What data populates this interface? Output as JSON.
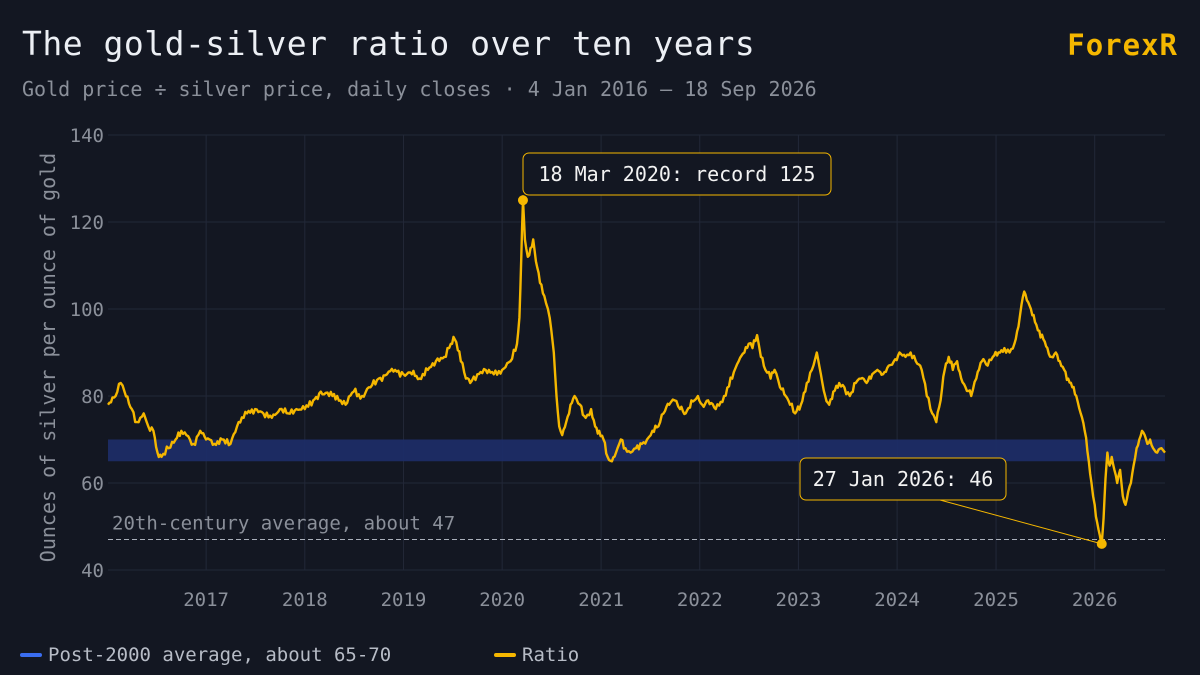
{
  "header": {
    "title": "The gold-silver ratio over ten years",
    "subtitle": "Gold price ÷ silver price, daily closes · 4 Jan 2016 – 18 Sep 2026",
    "brand": "ForexR"
  },
  "colors": {
    "background": "#131722",
    "ratio_line": "#f5b700",
    "band": "#1c2c66",
    "band_legend": "#3a6df0",
    "grid": "#222838",
    "text_muted": "#8b909a"
  },
  "chart_data": {
    "type": "line",
    "title": "The gold-silver ratio over ten years",
    "ylabel": "Ounces of silver per ounce of gold",
    "xlabel": "",
    "ylim": [
      40,
      140
    ],
    "y_ticks": [
      40,
      60,
      80,
      100,
      120,
      140
    ],
    "x_range": [
      "2016-01-04",
      "2026-09-18"
    ],
    "x_ticks": [
      {
        "label": "2017",
        "date": "2017-01-01"
      },
      {
        "label": "2018",
        "date": "2018-01-01"
      },
      {
        "label": "2019",
        "date": "2019-01-01"
      },
      {
        "label": "2020",
        "date": "2020-01-01"
      },
      {
        "label": "2021",
        "date": "2021-01-01"
      },
      {
        "label": "2022",
        "date": "2022-01-01"
      },
      {
        "label": "2023",
        "date": "2023-01-01"
      },
      {
        "label": "2024",
        "date": "2024-01-01"
      },
      {
        "label": "2025",
        "date": "2025-01-01"
      },
      {
        "label": "2026",
        "date": "2026-01-01"
      }
    ],
    "grid": true,
    "band": {
      "label": "Post-2000 average, about 65-70",
      "from": 65,
      "to": 70
    },
    "reference_line": {
      "label": "20th-century average, about 47",
      "value": 47
    },
    "annotations": [
      {
        "label": "18 Mar 2020: record 125",
        "date": "2020-03-18",
        "value": 125
      },
      {
        "label": "27 Jan 2026: 46",
        "date": "2026-01-27",
        "value": 46
      }
    ],
    "legend_position": "bottom-left",
    "series": [
      {
        "name": "Ratio",
        "points": [
          [
            "2016-01-04",
            78
          ],
          [
            "2016-02-01",
            80
          ],
          [
            "2016-02-20",
            83
          ],
          [
            "2016-03-05",
            81
          ],
          [
            "2016-04-01",
            77
          ],
          [
            "2016-04-20",
            74
          ],
          [
            "2016-05-15",
            76
          ],
          [
            "2016-06-01",
            73
          ],
          [
            "2016-06-20",
            72
          ],
          [
            "2016-07-05",
            67
          ],
          [
            "2016-07-20",
            66
          ],
          [
            "2016-08-15",
            68
          ],
          [
            "2016-09-10",
            70
          ],
          [
            "2016-10-01",
            72
          ],
          [
            "2016-10-20",
            71
          ],
          [
            "2016-11-15",
            69
          ],
          [
            "2016-12-10",
            72
          ],
          [
            "2017-01-01",
            70
          ],
          [
            "2017-02-01",
            69
          ],
          [
            "2017-03-01",
            70
          ],
          [
            "2017-04-01",
            69
          ],
          [
            "2017-05-01",
            74
          ],
          [
            "2017-06-01",
            76
          ],
          [
            "2017-07-01",
            77
          ],
          [
            "2017-08-01",
            76
          ],
          [
            "2017-09-01",
            75
          ],
          [
            "2017-10-01",
            77
          ],
          [
            "2017-11-01",
            76
          ],
          [
            "2017-12-01",
            77
          ],
          [
            "2018-01-01",
            77
          ],
          [
            "2018-02-01",
            79
          ],
          [
            "2018-03-01",
            81
          ],
          [
            "2018-04-01",
            80
          ],
          [
            "2018-05-01",
            80
          ],
          [
            "2018-06-01",
            78
          ],
          [
            "2018-07-01",
            81
          ],
          [
            "2018-08-01",
            80
          ],
          [
            "2018-09-01",
            82
          ],
          [
            "2018-10-01",
            84
          ],
          [
            "2018-11-01",
            85
          ],
          [
            "2018-12-01",
            86
          ],
          [
            "2019-01-01",
            85
          ],
          [
            "2019-02-01",
            85
          ],
          [
            "2019-03-01",
            84
          ],
          [
            "2019-04-01",
            86
          ],
          [
            "2019-05-01",
            88
          ],
          [
            "2019-06-01",
            89
          ],
          [
            "2019-06-25",
            92
          ],
          [
            "2019-07-10",
            93
          ],
          [
            "2019-08-01",
            88
          ],
          [
            "2019-08-20",
            84
          ],
          [
            "2019-09-05",
            83
          ],
          [
            "2019-10-01",
            85
          ],
          [
            "2019-11-01",
            86
          ],
          [
            "2019-12-01",
            85
          ],
          [
            "2020-01-01",
            86
          ],
          [
            "2020-02-01",
            88
          ],
          [
            "2020-02-25",
            92
          ],
          [
            "2020-03-05",
            98
          ],
          [
            "2020-03-12",
            112
          ],
          [
            "2020-03-18",
            125
          ],
          [
            "2020-03-25",
            116
          ],
          [
            "2020-04-05",
            112
          ],
          [
            "2020-04-15",
            114
          ],
          [
            "2020-04-25",
            116
          ],
          [
            "2020-05-05",
            111
          ],
          [
            "2020-05-20",
            106
          ],
          [
            "2020-06-05",
            103
          ],
          [
            "2020-06-25",
            98
          ],
          [
            "2020-07-10",
            90
          ],
          [
            "2020-07-20",
            80
          ],
          [
            "2020-07-30",
            73
          ],
          [
            "2020-08-10",
            71
          ],
          [
            "2020-08-25",
            74
          ],
          [
            "2020-09-10",
            78
          ],
          [
            "2020-09-25",
            80
          ],
          [
            "2020-10-15",
            78
          ],
          [
            "2020-11-05",
            75
          ],
          [
            "2020-11-25",
            77
          ],
          [
            "2020-12-10",
            73
          ],
          [
            "2020-12-25",
            72
          ],
          [
            "2021-01-10",
            70
          ],
          [
            "2021-01-25",
            66
          ],
          [
            "2021-02-10",
            65
          ],
          [
            "2021-02-25",
            67
          ],
          [
            "2021-03-15",
            70
          ],
          [
            "2021-04-01",
            68
          ],
          [
            "2021-04-20",
            67
          ],
          [
            "2021-05-10",
            68
          ],
          [
            "2021-06-01",
            69
          ],
          [
            "2021-06-20",
            70
          ],
          [
            "2021-07-10",
            72
          ],
          [
            "2021-08-01",
            73
          ],
          [
            "2021-08-20",
            76
          ],
          [
            "2021-09-10",
            78
          ],
          [
            "2021-09-30",
            79
          ],
          [
            "2021-10-20",
            77
          ],
          [
            "2021-11-10",
            76
          ],
          [
            "2021-12-01",
            79
          ],
          [
            "2021-12-25",
            80
          ],
          [
            "2022-01-10",
            78
          ],
          [
            "2022-02-01",
            79
          ],
          [
            "2022-03-01",
            77
          ],
          [
            "2022-04-01",
            80
          ],
          [
            "2022-05-01",
            84
          ],
          [
            "2022-05-25",
            88
          ],
          [
            "2022-06-15",
            90
          ],
          [
            "2022-07-01",
            92
          ],
          [
            "2022-07-15",
            91
          ],
          [
            "2022-08-01",
            94
          ],
          [
            "2022-08-15",
            89
          ],
          [
            "2022-09-01",
            86
          ],
          [
            "2022-09-20",
            84
          ],
          [
            "2022-10-05",
            86
          ],
          [
            "2022-10-25",
            82
          ],
          [
            "2022-11-15",
            80
          ],
          [
            "2022-12-01",
            78
          ],
          [
            "2022-12-20",
            76
          ],
          [
            "2023-01-10",
            78
          ],
          [
            "2023-02-01",
            83
          ],
          [
            "2023-02-20",
            86
          ],
          [
            "2023-03-10",
            90
          ],
          [
            "2023-03-25",
            85
          ],
          [
            "2023-04-10",
            80
          ],
          [
            "2023-04-25",
            78
          ],
          [
            "2023-05-10",
            81
          ],
          [
            "2023-06-01",
            83
          ],
          [
            "2023-06-20",
            82
          ],
          [
            "2023-07-10",
            80
          ],
          [
            "2023-08-01",
            83
          ],
          [
            "2023-08-20",
            84
          ],
          [
            "2023-09-10",
            83
          ],
          [
            "2023-10-01",
            85
          ],
          [
            "2023-10-20",
            86
          ],
          [
            "2023-11-10",
            85
          ],
          [
            "2023-12-01",
            87
          ],
          [
            "2023-12-20",
            88
          ],
          [
            "2024-01-10",
            90
          ],
          [
            "2024-02-01",
            89
          ],
          [
            "2024-02-20",
            90
          ],
          [
            "2024-03-10",
            88
          ],
          [
            "2024-04-01",
            86
          ],
          [
            "2024-04-20",
            80
          ],
          [
            "2024-05-10",
            76
          ],
          [
            "2024-05-25",
            74
          ],
          [
            "2024-06-10",
            79
          ],
          [
            "2024-06-25",
            86
          ],
          [
            "2024-07-10",
            89
          ],
          [
            "2024-07-25",
            86
          ],
          [
            "2024-08-10",
            88
          ],
          [
            "2024-08-25",
            84
          ],
          [
            "2024-09-10",
            82
          ],
          [
            "2024-10-01",
            80
          ],
          [
            "2024-10-20",
            84
          ],
          [
            "2024-11-10",
            88
          ],
          [
            "2024-12-01",
            87
          ],
          [
            "2024-12-20",
            89
          ],
          [
            "2025-01-10",
            90
          ],
          [
            "2025-02-01",
            91
          ],
          [
            "2025-02-20",
            90
          ],
          [
            "2025-03-10",
            92
          ],
          [
            "2025-03-25",
            96
          ],
          [
            "2025-04-05",
            101
          ],
          [
            "2025-04-15",
            104
          ],
          [
            "2025-04-25",
            102
          ],
          [
            "2025-05-10",
            100
          ],
          [
            "2025-05-25",
            97
          ],
          [
            "2025-06-10",
            95
          ],
          [
            "2025-06-25",
            93
          ],
          [
            "2025-07-10",
            91
          ],
          [
            "2025-07-25",
            89
          ],
          [
            "2025-08-10",
            90
          ],
          [
            "2025-08-25",
            88
          ],
          [
            "2025-09-10",
            86
          ],
          [
            "2025-09-25",
            84
          ],
          [
            "2025-10-10",
            82
          ],
          [
            "2025-10-25",
            80
          ],
          [
            "2025-11-10",
            76
          ],
          [
            "2025-11-25",
            72
          ],
          [
            "2025-12-10",
            65
          ],
          [
            "2025-12-20",
            60
          ],
          [
            "2026-01-01",
            55
          ],
          [
            "2026-01-10",
            51
          ],
          [
            "2026-01-20",
            48
          ],
          [
            "2026-01-27",
            46
          ],
          [
            "2026-02-03",
            52
          ],
          [
            "2026-02-10",
            61
          ],
          [
            "2026-02-17",
            67
          ],
          [
            "2026-02-25",
            64
          ],
          [
            "2026-03-05",
            66
          ],
          [
            "2026-03-15",
            63
          ],
          [
            "2026-03-25",
            60
          ],
          [
            "2026-04-05",
            63
          ],
          [
            "2026-04-15",
            57
          ],
          [
            "2026-04-25",
            55
          ],
          [
            "2026-05-05",
            58
          ],
          [
            "2026-05-15",
            60
          ],
          [
            "2026-05-25",
            64
          ],
          [
            "2026-06-05",
            68
          ],
          [
            "2026-06-15",
            70
          ],
          [
            "2026-06-25",
            72
          ],
          [
            "2026-07-05",
            71
          ],
          [
            "2026-07-15",
            69
          ],
          [
            "2026-07-25",
            70
          ],
          [
            "2026-08-05",
            68
          ],
          [
            "2026-08-20",
            67
          ],
          [
            "2026-09-05",
            68
          ],
          [
            "2026-09-18",
            67
          ]
        ]
      }
    ]
  },
  "legend": {
    "items": [
      {
        "label": "Post-2000 average, about 65-70",
        "color": "#3a6df0"
      },
      {
        "label": "Ratio",
        "color": "#f5b700"
      }
    ]
  }
}
